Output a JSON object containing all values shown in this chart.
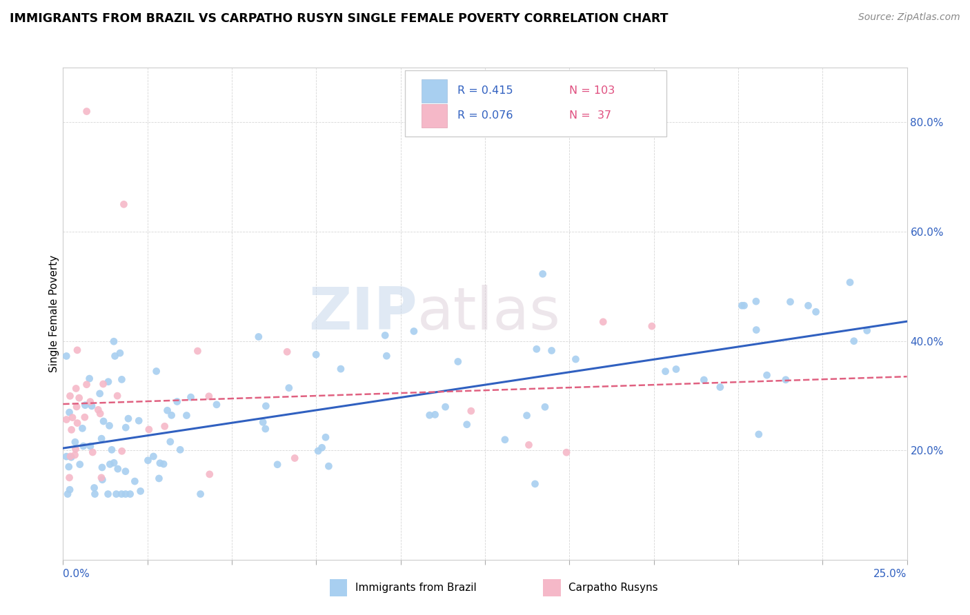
{
  "title": "IMMIGRANTS FROM BRAZIL VS CARPATHO RUSYN SINGLE FEMALE POVERTY CORRELATION CHART",
  "source": "Source: ZipAtlas.com",
  "ylabel": "Single Female Poverty",
  "legend_labels": [
    "Immigrants from Brazil",
    "Carpatho Rusyns"
  ],
  "brazil_color": "#a8cff0",
  "rusyn_color": "#f5b8c8",
  "brazil_line_color": "#3060c0",
  "rusyn_line_color": "#e06080",
  "background_color": "#ffffff",
  "xlim": [
    0.0,
    0.25
  ],
  "ylim": [
    0.0,
    0.9
  ],
  "right_ytick_vals": [
    0.2,
    0.4,
    0.6,
    0.8
  ],
  "right_ytick_labels": [
    "20.0%",
    "40.0%",
    "60.0%",
    "80.0%"
  ],
  "brazil_R": 0.415,
  "brazil_N": 103,
  "rusyn_R": 0.076,
  "rusyn_N": 37
}
